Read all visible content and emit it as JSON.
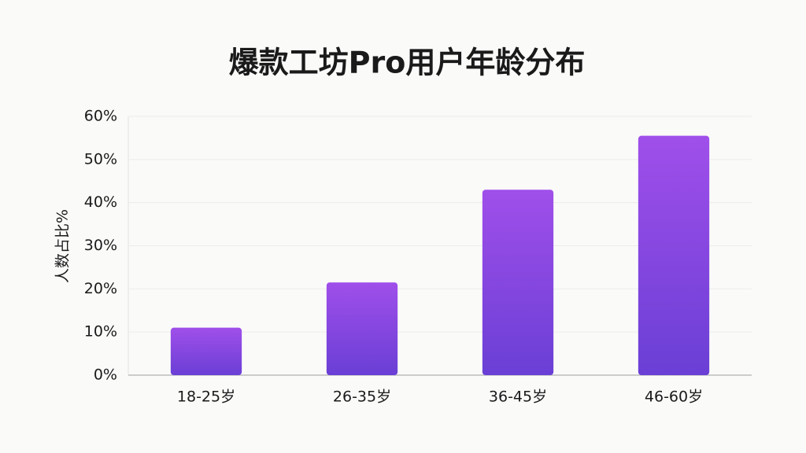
{
  "chart_data": {
    "type": "bar",
    "title": "爆款工坊Pro用户年龄分布",
    "y_label": "人数占比%",
    "categories": [
      "18-25岁",
      "26-35岁",
      "36-45岁",
      "46-60岁"
    ],
    "values": [
      11,
      21.5,
      43,
      55.5
    ],
    "colors": [
      "#a04fea",
      "#6a3fd5"
    ],
    "ylim": [
      0,
      60
    ],
    "yticks": [
      {
        "value": 0,
        "label": "0%"
      },
      {
        "value": 10,
        "label": "10%"
      },
      {
        "value": 20,
        "label": "20%"
      },
      {
        "value": 30,
        "label": "30%"
      },
      {
        "value": 40,
        "label": "40%"
      },
      {
        "value": 50,
        "label": "50%"
      },
      {
        "value": 60,
        "label": "60%"
      }
    ],
    "grid": true
  }
}
